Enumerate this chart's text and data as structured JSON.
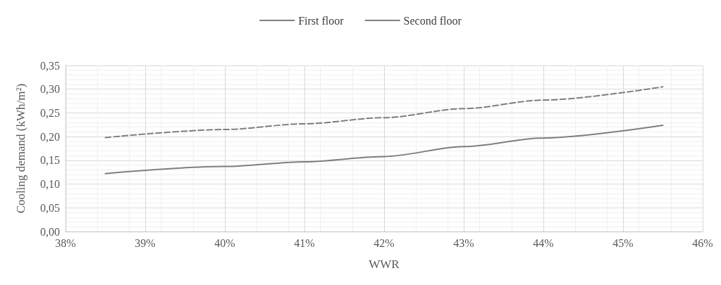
{
  "chart_data": {
    "type": "line",
    "xlabel": "WWR",
    "ylabel": "Cooling demand (kWh/m²)",
    "xlim": [
      38,
      46
    ],
    "xticks": [
      {
        "value": 38,
        "label": "38%"
      },
      {
        "value": 39,
        "label": "39%"
      },
      {
        "value": 40,
        "label": "40%"
      },
      {
        "value": 41,
        "label": "41%"
      },
      {
        "value": 42,
        "label": "42%"
      },
      {
        "value": 43,
        "label": "43%"
      },
      {
        "value": 44,
        "label": "44%"
      },
      {
        "value": 45,
        "label": "45%"
      },
      {
        "value": 46,
        "label": "46%"
      }
    ],
    "ylim": [
      0,
      0.35
    ],
    "yticks": [
      {
        "value": 0,
        "label": "0,00"
      },
      {
        "value": 0.05,
        "label": "0,05"
      },
      {
        "value": 0.1,
        "label": "0,10"
      },
      {
        "value": 0.15,
        "label": "0,15"
      },
      {
        "value": 0.2,
        "label": "0,20"
      },
      {
        "value": 0.25,
        "label": "0,25"
      },
      {
        "value": 0.3,
        "label": "0,30"
      },
      {
        "value": 0.35,
        "label": "0,35"
      }
    ],
    "x": [
      38.5,
      40,
      41,
      42,
      43,
      44,
      45.5
    ],
    "series": [
      {
        "name": "First floor",
        "color": "#7f7f7f",
        "line_style": "solid",
        "values": [
          0.122,
          0.137,
          0.147,
          0.158,
          0.179,
          0.197,
          0.224
        ]
      },
      {
        "name": "Second floor",
        "color": "#7f7f7f",
        "line_style": "dashed",
        "values": [
          0.198,
          0.215,
          0.227,
          0.24,
          0.259,
          0.277,
          0.305
        ]
      }
    ],
    "grid": true,
    "legend": "top",
    "marker": "none"
  }
}
